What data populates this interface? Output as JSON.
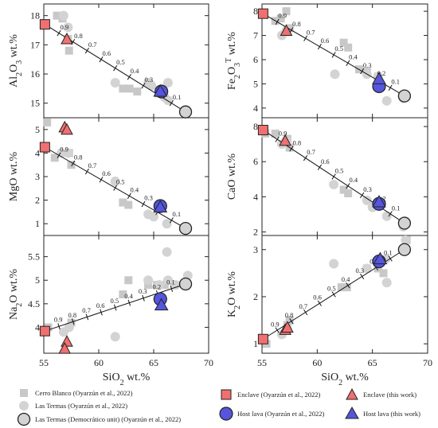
{
  "colors": {
    "gray_marker": "#c8c8c8",
    "gray_circle": "#d3d3d3",
    "enclave_red": "#f07070",
    "host_blue": "#5555dd",
    "line": "#111111",
    "frame": "#222222"
  },
  "chart_data": [
    {
      "id": "al2o3",
      "type": "scatter",
      "column": "left",
      "row": 0,
      "ylabel": [
        "Al",
        "2",
        "O",
        "3",
        " wt.%"
      ],
      "xlim": [
        55,
        70
      ],
      "ylim": [
        14.5,
        18.4
      ],
      "yticks": [
        15,
        16,
        17,
        18
      ],
      "xticks": [
        55,
        60,
        65,
        70
      ],
      "mixing": {
        "from": [
          55.1,
          17.7
        ],
        "to": [
          67.9,
          14.7
        ]
      },
      "series": {
        "cerro_blanco": [
          [
            56.2,
            18.0
          ],
          [
            56.7,
            17.9
          ],
          [
            57.2,
            17.2
          ],
          [
            57.3,
            16.8
          ],
          [
            62.2,
            15.5
          ],
          [
            62.8,
            15.5
          ],
          [
            63.5,
            15.4
          ]
        ],
        "las_termas": [
          [
            56.8,
            18.0
          ],
          [
            57.2,
            17.6
          ],
          [
            61.5,
            15.7
          ],
          [
            64.5,
            15.7
          ],
          [
            66.3,
            15.7
          ],
          [
            64.8,
            15.6
          ],
          [
            66.0,
            15.2
          ],
          [
            66.3,
            15.1
          ]
        ],
        "democratico": [
          [
            67.9,
            14.7
          ]
        ],
        "enclave_ref": [
          [
            55.1,
            17.7
          ]
        ],
        "host_ref": [
          [
            65.7,
            15.4
          ]
        ],
        "enclave_this": [
          [
            57.1,
            17.2
          ]
        ],
        "host_this": [
          [
            65.6,
            15.4
          ]
        ]
      }
    },
    {
      "id": "fe2o3t",
      "type": "scatter",
      "column": "right",
      "row": 0,
      "ylabel": [
        "Fe",
        "2",
        "O",
        "3",
        "T",
        " wt.%"
      ],
      "xlim": [
        55,
        70
      ],
      "ylim": [
        3.6,
        8.3
      ],
      "yticks": [
        4,
        5,
        6,
        7,
        8
      ],
      "xticks": [
        55,
        60,
        65,
        70
      ],
      "mixing": {
        "from": [
          55.1,
          7.9
        ],
        "to": [
          67.9,
          4.5
        ]
      },
      "series": {
        "cerro_blanco": [
          [
            56.2,
            7.6
          ],
          [
            56.7,
            7.7
          ],
          [
            57.2,
            8.0
          ],
          [
            57.5,
            7.3
          ],
          [
            62.4,
            6.7
          ],
          [
            62.8,
            6.5
          ],
          [
            63.8,
            5.6
          ],
          [
            64.5,
            5.5
          ],
          [
            65.5,
            5.3
          ]
        ],
        "las_termas": [
          [
            56.8,
            7.0
          ],
          [
            57.2,
            7.2
          ],
          [
            61.6,
            5.4
          ],
          [
            64.5,
            5.4
          ],
          [
            65.5,
            5.3
          ],
          [
            66.3,
            4.3
          ],
          [
            67.8,
            4.4
          ]
        ],
        "democratico": [
          [
            67.9,
            4.5
          ]
        ],
        "enclave_ref": [
          [
            55.1,
            7.9
          ]
        ],
        "host_ref": [
          [
            65.6,
            4.9
          ]
        ],
        "enclave_this": [
          [
            57.2,
            7.2
          ]
        ],
        "host_this": [
          [
            65.6,
            5.2
          ]
        ]
      }
    },
    {
      "id": "mgo",
      "type": "scatter",
      "column": "left",
      "row": 1,
      "ylabel": [
        "MgO wt.%"
      ],
      "xlim": [
        55,
        70
      ],
      "ylim": [
        0.5,
        5.5
      ],
      "yticks": [
        1,
        2,
        3,
        4,
        5
      ],
      "xticks": [
        55,
        60,
        65,
        70
      ],
      "mixing": {
        "from": [
          55.1,
          4.25
        ],
        "to": [
          67.9,
          0.8
        ]
      },
      "series": {
        "cerro_blanco": [
          [
            55.3,
            5.3
          ],
          [
            56.0,
            3.8
          ],
          [
            57.3,
            4.0
          ],
          [
            57.5,
            3.5
          ],
          [
            62.2,
            1.9
          ],
          [
            62.7,
            1.8
          ]
        ],
        "las_termas": [
          [
            56.6,
            4.0
          ],
          [
            57.2,
            4.0
          ],
          [
            61.5,
            2.8
          ],
          [
            64.5,
            1.4
          ],
          [
            65.0,
            1.3
          ],
          [
            66.2,
            1.0
          ]
        ],
        "democratico": [
          [
            67.9,
            0.8
          ]
        ],
        "enclave_ref": [
          [
            55.1,
            4.25
          ]
        ],
        "host_ref": [
          [
            65.6,
            1.75
          ]
        ],
        "enclave_this": [
          [
            56.9,
            5.1
          ],
          [
            57.1,
            5.0
          ]
        ],
        "host_this": [
          [
            65.6,
            1.7
          ]
        ]
      }
    },
    {
      "id": "cao",
      "type": "scatter",
      "column": "right",
      "row": 1,
      "ylabel": [
        "CaO wt.%"
      ],
      "xlim": [
        55,
        70
      ],
      "ylim": [
        1.8,
        8.5
      ],
      "yticks": [
        2,
        4,
        6,
        8
      ],
      "xticks": [
        55,
        60,
        65,
        70
      ],
      "mixing": {
        "from": [
          55.1,
          7.8
        ],
        "to": [
          67.9,
          2.5
        ]
      },
      "series": {
        "cerro_blanco": [
          [
            55.3,
            7.6
          ],
          [
            56.2,
            7.6
          ],
          [
            57.3,
            7.3
          ],
          [
            57.5,
            6.8
          ],
          [
            62.4,
            4.4
          ],
          [
            62.8,
            4.2
          ]
        ],
        "las_termas": [
          [
            56.8,
            7.0
          ],
          [
            57.2,
            7.2
          ],
          [
            61.5,
            4.7
          ],
          [
            64.5,
            3.8
          ],
          [
            65.0,
            3.4
          ],
          [
            66.3,
            2.9
          ],
          [
            67.8,
            2.3
          ]
        ],
        "democratico": [
          [
            67.9,
            2.5
          ]
        ],
        "enclave_ref": [
          [
            55.1,
            7.8
          ]
        ],
        "host_ref": [
          [
            65.6,
            3.6
          ]
        ],
        "enclave_this": [
          [
            57.1,
            7.2
          ]
        ],
        "host_this": [
          [
            65.6,
            3.7
          ]
        ]
      }
    },
    {
      "id": "na2o",
      "type": "scatter",
      "column": "left",
      "row": 2,
      "ylabel": [
        "Na",
        "2",
        "O wt.%"
      ],
      "xlim": [
        55,
        70
      ],
      "ylim": [
        3.45,
        5.95
      ],
      "yticks": [
        4,
        4.5,
        5,
        5.5
      ],
      "ytick_labels": [
        "4",
        "4.5",
        "5",
        "5.5"
      ],
      "xticks": [
        55,
        60,
        65,
        70
      ],
      "mixing": {
        "from": [
          55.1,
          3.92
        ],
        "to": [
          67.9,
          4.92
        ]
      },
      "series": {
        "cerro_blanco": [
          [
            55.4,
            4.0
          ],
          [
            57.5,
            4.1
          ],
          [
            62.2,
            4.7
          ],
          [
            62.7,
            5.0
          ],
          [
            64.5,
            4.9
          ],
          [
            65.3,
            4.9
          ],
          [
            66.0,
            4.9
          ]
        ],
        "las_termas": [
          [
            56.8,
            3.9
          ],
          [
            57.3,
            4.0
          ],
          [
            61.5,
            3.8
          ],
          [
            64.5,
            5.0
          ],
          [
            65.5,
            4.9
          ],
          [
            66.2,
            5.6
          ],
          [
            66.3,
            5.0
          ],
          [
            67.0,
            4.9
          ],
          [
            68.1,
            5.1
          ]
        ],
        "democratico": [
          [
            67.9,
            4.92
          ]
        ],
        "enclave_ref": [
          [
            55.1,
            3.92
          ]
        ],
        "host_ref": [
          [
            65.6,
            4.6
          ]
        ],
        "enclave_this": [
          [
            57.1,
            3.7
          ],
          [
            56.9,
            3.55
          ]
        ],
        "host_this": [
          [
            65.7,
            4.47
          ]
        ]
      }
    },
    {
      "id": "k2o",
      "type": "scatter",
      "column": "right",
      "row": 2,
      "ylabel": [
        "K",
        "2",
        "O wt.%"
      ],
      "xlim": [
        55,
        70
      ],
      "ylim": [
        0.8,
        3.3
      ],
      "yticks": [
        1,
        2,
        3
      ],
      "xticks": [
        55,
        60,
        65,
        70
      ],
      "mixing": {
        "from": [
          55.1,
          1.1
        ],
        "to": [
          67.9,
          3.0
        ]
      },
      "series": {
        "cerro_blanco": [
          [
            55.4,
            1.0
          ],
          [
            57.3,
            1.4
          ],
          [
            57.5,
            1.5
          ],
          [
            62.2,
            2.2
          ],
          [
            62.7,
            2.2
          ],
          [
            64.5,
            2.6
          ],
          [
            65.5,
            2.6
          ],
          [
            66.0,
            2.5
          ],
          [
            68.1,
            3.2
          ]
        ],
        "las_termas": [
          [
            56.8,
            1.2
          ],
          [
            57.3,
            1.3
          ],
          [
            61.5,
            2.7
          ],
          [
            64.5,
            2.6
          ],
          [
            65.5,
            2.7
          ],
          [
            66.3,
            2.3
          ],
          [
            66.2,
            2.8
          ],
          [
            68.0,
            3.2
          ]
        ],
        "democratico": [
          [
            67.9,
            3.0
          ]
        ],
        "enclave_ref": [
          [
            55.1,
            1.1
          ]
        ],
        "host_ref": [
          [
            65.6,
            2.75
          ]
        ],
        "enclave_this": [
          [
            57.1,
            1.3
          ],
          [
            57.3,
            1.35
          ]
        ],
        "host_this": [
          [
            65.7,
            2.8
          ]
        ]
      }
    }
  ],
  "fractions": [
    "0.9",
    "0.8",
    "0.7",
    "0.6",
    "0.5",
    "0.4",
    "0.3",
    "0.2",
    "0.1"
  ],
  "xlabel": [
    "SiO",
    "2",
    " wt.%"
  ],
  "xtick_labels": [
    "55",
    "60",
    "65",
    "70"
  ],
  "legend": {
    "cerro_blanco": "Cerro Blanco   (Oyarzún et al., 2022)",
    "las_termas": "Las Termas   (Oyarzún et al., 2022)",
    "democratico": "Las Termas (Democrático unit)   (Oyarzún et al., 2022)",
    "enclave_ref": "Enclave   (Oyarzún et al., 2022)",
    "host_ref": "Host lava   (Oyarzún et al., 2022)",
    "enclave_this": "Enclave   (this work)",
    "host_this": "Host lava   (this work)"
  }
}
